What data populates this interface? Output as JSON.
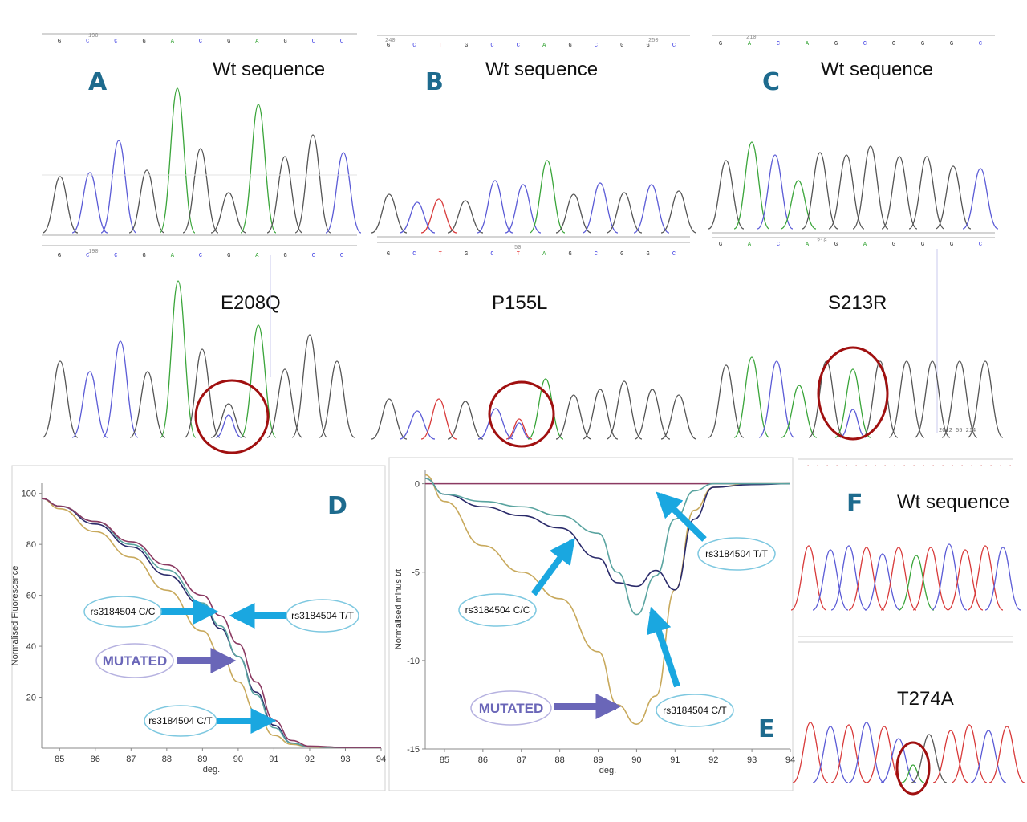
{
  "panels": {
    "A": {
      "label": "A",
      "top_title": "Wt sequence",
      "bottom_title": "E208Q",
      "top_ruler": "190",
      "bottom_ruler": "190",
      "top_bases": [
        "G",
        "C",
        "C",
        "G",
        "A",
        "C",
        "G",
        "A",
        "G",
        "C",
        "C"
      ],
      "bottom_bases": [
        "G",
        "C",
        "C",
        "G",
        "A",
        "C",
        "G",
        "A",
        "G",
        "C",
        "C"
      ]
    },
    "B": {
      "label": "B",
      "top_title": "Wt sequence",
      "bottom_title": "P155L",
      "top_ruler_left": "240",
      "top_ruler_right": "250",
      "bottom_ruler": "50",
      "top_bases": [
        "G",
        "C",
        "T",
        "G",
        "C",
        "C",
        "A",
        "G",
        "C",
        "G",
        "G",
        "C"
      ],
      "bottom_bases": [
        "G",
        "C",
        "T",
        "G",
        "C",
        "T",
        "A",
        "G",
        "C",
        "G",
        "G",
        "C"
      ]
    },
    "C": {
      "label": "C",
      "top_title": "Wt sequence",
      "bottom_title": "S213R",
      "top_ruler": "210",
      "bottom_ruler": "210",
      "top_bases": [
        "G",
        "A",
        "C",
        "A",
        "G",
        "C",
        "G",
        "G",
        "G",
        "C"
      ],
      "bottom_bases": [
        "G",
        "A",
        "C",
        "A",
        "G",
        "A",
        "G",
        "G",
        "G",
        "C"
      ],
      "trace_note": "2012 55 214"
    },
    "D": {
      "label": "D"
    },
    "E": {
      "label": "E"
    },
    "F": {
      "label": "F",
      "top_title": "Wt sequence",
      "bottom_title": "T274A"
    }
  },
  "colors": {
    "A": "#2ca02c",
    "C": "#2a2ae0",
    "G": "#222222",
    "T": "#e02020",
    "panel_label": "#1e6b8e",
    "arrow": "#1aa7e0",
    "mutated_arrow": "#6a66b8",
    "circle": "#a01010"
  },
  "chart_data": [
    {
      "type": "line",
      "panel": "D",
      "ylabel": "Normalised Fluorescence",
      "xlabel": "deg.",
      "xlim": [
        84.5,
        94
      ],
      "ylim": [
        0,
        104
      ],
      "xticks": [
        85,
        86,
        87,
        88,
        89,
        90,
        91,
        92,
        93,
        94
      ],
      "yticks": [
        20,
        40,
        60,
        80,
        100
      ],
      "series": [
        {
          "color": "#c8a95c",
          "x": [
            84.5,
            85,
            86,
            87,
            88,
            89,
            89.5,
            90,
            90.5,
            91,
            91.5,
            92,
            93,
            94
          ],
          "y": [
            98,
            94,
            85,
            75,
            62,
            46,
            37,
            26,
            14,
            5,
            1.5,
            0.5,
            0.3,
            0.3
          ]
        },
        {
          "color": "#2a2a6a",
          "x": [
            84.5,
            85,
            86,
            87,
            88,
            89,
            89.5,
            90,
            90.5,
            91,
            91.5,
            92,
            93,
            94
          ],
          "y": [
            98,
            95,
            88,
            79,
            68,
            56,
            47,
            36,
            22,
            9,
            2,
            0.6,
            0.3,
            0.3
          ]
        },
        {
          "color": "#5aa4a0",
          "x": [
            84.5,
            85,
            86,
            87,
            88,
            89,
            89.5,
            90,
            90.5,
            91,
            91.5,
            92,
            93,
            94
          ],
          "y": [
            98,
            95,
            89,
            80,
            70,
            57,
            48,
            36,
            21,
            8,
            2,
            0.6,
            0.3,
            0.3
          ]
        },
        {
          "color": "#8b3a62",
          "x": [
            84.5,
            85,
            86,
            87,
            88,
            89,
            89.5,
            90,
            90.5,
            91,
            91.5,
            92,
            93,
            94
          ],
          "y": [
            98,
            95,
            89,
            81,
            72,
            60,
            52,
            41,
            26,
            11,
            3,
            0.8,
            0.3,
            0.3
          ]
        }
      ],
      "callouts": [
        {
          "text": "rs3184504 C/C"
        },
        {
          "text": "rs3184504 T/T"
        },
        {
          "text": "MUTATED"
        },
        {
          "text": "rs3184504 C/T"
        }
      ]
    },
    {
      "type": "line",
      "panel": "E",
      "ylabel": "Normalised minus t/t",
      "xlabel": "deg.",
      "xlim": [
        84.5,
        94
      ],
      "ylim": [
        -15,
        0.8
      ],
      "xticks": [
        85,
        86,
        87,
        88,
        89,
        90,
        91,
        92,
        93,
        94
      ],
      "yticks": [
        0,
        -5,
        -10,
        -15
      ],
      "series": [
        {
          "color": "#8b3a62",
          "x": [
            84.5,
            94
          ],
          "y": [
            0,
            0
          ]
        },
        {
          "color": "#c8a95c",
          "x": [
            84.5,
            85,
            86,
            87,
            88,
            89,
            89.5,
            90,
            90.5,
            91,
            91.5,
            92,
            93,
            94
          ],
          "y": [
            0.5,
            -1.0,
            -3.5,
            -5.0,
            -6.5,
            -9.5,
            -12.5,
            -13.6,
            -12.0,
            -6.0,
            -1.5,
            -0.2,
            0,
            0
          ]
        },
        {
          "color": "#2a2a6a",
          "x": [
            84.5,
            85,
            86,
            87,
            88,
            89,
            89.5,
            90,
            90.5,
            91,
            91.5,
            92,
            93,
            94
          ],
          "y": [
            0.3,
            -0.6,
            -1.3,
            -1.8,
            -2.5,
            -4.2,
            -5.6,
            -5.8,
            -4.9,
            -6.0,
            -2.0,
            -0.2,
            -0.05,
            0
          ]
        },
        {
          "color": "#5aa4a0",
          "x": [
            84.5,
            85,
            86,
            87,
            88,
            89,
            89.5,
            90,
            90.5,
            91,
            91.5,
            92,
            93,
            94
          ],
          "y": [
            0.3,
            -0.6,
            -1.0,
            -1.3,
            -1.8,
            -2.8,
            -5.0,
            -7.4,
            -5.2,
            -2.0,
            -0.4,
            0,
            0,
            0
          ]
        }
      ],
      "callouts": [
        {
          "text": "rs3184504 C/C"
        },
        {
          "text": "rs3184504 T/T"
        },
        {
          "text": "MUTATED"
        },
        {
          "text": "rs3184504 C/T"
        }
      ]
    }
  ]
}
